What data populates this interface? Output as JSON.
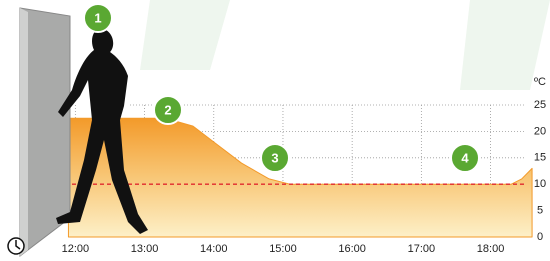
{
  "chart_data": {
    "type": "area",
    "unit_label": "ºC",
    "x": [
      11.9,
      13.3,
      13.7,
      14.0,
      14.4,
      14.8,
      15.1,
      18.3,
      18.45,
      18.6
    ],
    "values": [
      22.5,
      22.5,
      21,
      18,
      14,
      11,
      10,
      10,
      11,
      13
    ],
    "color": "#f39a2a",
    "xlim": [
      11.2,
      18.7
    ],
    "xticks": [
      {
        "value": 12,
        "label": "12:00"
      },
      {
        "value": 13,
        "label": "13:00"
      },
      {
        "value": 14,
        "label": "14:00"
      },
      {
        "value": 15,
        "label": "15:00"
      },
      {
        "value": 16,
        "label": "16:00"
      },
      {
        "value": 17,
        "label": "17:00"
      },
      {
        "value": 18,
        "label": "18:00"
      }
    ],
    "ylim": [
      0,
      25
    ],
    "yticks": [
      0,
      5,
      10,
      15,
      20,
      25
    ],
    "reference_line": {
      "value": 10,
      "color": "#e0292e"
    },
    "grid": true,
    "annotations": [
      "1",
      "2",
      "3",
      "4"
    ],
    "annotation_color": "#5aa832"
  }
}
